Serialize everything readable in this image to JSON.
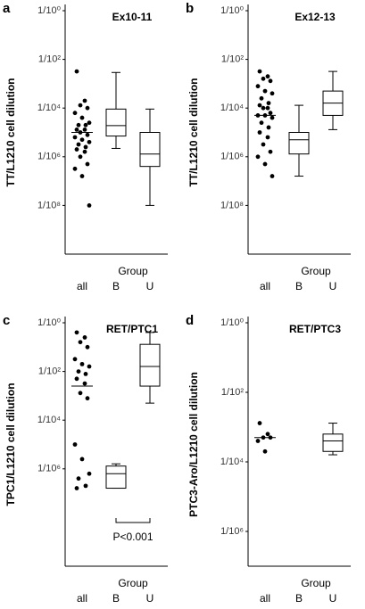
{
  "chart_data": [
    {
      "type": "box",
      "panel_label": "a",
      "title": "Ex10-11",
      "ylabel": "TT/L1210 cell dilution",
      "xlabel": "Group",
      "categories": [
        "all",
        "B",
        "U"
      ],
      "log_y": true,
      "ylim": [
        1e-10,
        1
      ],
      "yticks": [
        {
          "value": 1,
          "label": "1/10⁰"
        },
        {
          "value": 0.01,
          "label": "1/10²"
        },
        {
          "value": 0.0001,
          "label": "1/10⁴"
        },
        {
          "value": 1e-06,
          "label": "1/10⁶"
        },
        {
          "value": 1e-08,
          "label": "1/10⁸"
        }
      ],
      "points": {
        "values": [
          0.0032,
          0.0002,
          0.00013,
          0.0001,
          6.3e-05,
          4e-05,
          2.5e-05,
          2e-05,
          2e-05,
          1.3e-05,
          1.3e-05,
          1e-05,
          7.9e-06,
          6.3e-06,
          5e-06,
          4e-06,
          3.2e-06,
          2.5e-06,
          2e-06,
          1.6e-06,
          1e-06,
          5e-07,
          3.2e-07,
          1.6e-07,
          1e-08
        ],
        "median": 1e-05
      },
      "boxes": [
        {
          "whisker_high": 0.0029,
          "q3": 9.1e-05,
          "median": 1.9e-05,
          "q1": 7.1e-06,
          "whisker_low": 2.2e-06
        },
        {
          "whisker_high": 9.1e-05,
          "q3": 1e-05,
          "median": 1.3e-06,
          "q1": 4e-07,
          "whisker_low": 1e-08
        }
      ]
    },
    {
      "type": "box",
      "panel_label": "b",
      "title": "Ex12-13",
      "ylabel": "TT/L1210 cell dilution",
      "xlabel": "Group",
      "categories": [
        "all",
        "B",
        "U"
      ],
      "log_y": true,
      "ylim": [
        1e-10,
        1
      ],
      "yticks": [
        {
          "value": 1,
          "label": "1/10⁰"
        },
        {
          "value": 0.01,
          "label": "1/10²"
        },
        {
          "value": 0.0001,
          "label": "1/10⁴"
        },
        {
          "value": 1e-06,
          "label": "1/10⁶"
        },
        {
          "value": 1e-08,
          "label": "1/10⁸"
        }
      ],
      "points": {
        "values": [
          0.0032,
          0.002,
          0.0016,
          0.0013,
          0.00079,
          0.0005,
          0.0004,
          0.00025,
          0.00016,
          0.00013,
          0.0001,
          0.0001,
          6.3e-05,
          5e-05,
          5e-05,
          4e-05,
          2.5e-05,
          1.6e-05,
          1e-05,
          6.3e-06,
          3.2e-06,
          1.6e-06,
          1e-06,
          5e-07,
          1.6e-07
        ],
        "median": 5e-05
      },
      "boxes": [
        {
          "whisker_high": 0.00013,
          "q3": 1e-05,
          "median": 5e-06,
          "q1": 1.3e-06,
          "whisker_low": 1.6e-07
        },
        {
          "whisker_high": 0.0032,
          "q3": 0.0005,
          "median": 0.00016,
          "q1": 5e-05,
          "whisker_low": 1.3e-05
        }
      ]
    },
    {
      "type": "box",
      "panel_label": "c",
      "title": "RET/PTC1",
      "ylabel": "TPC1/L1210 cell dilution",
      "xlabel": "Group",
      "categories": [
        "all",
        "B",
        "U"
      ],
      "log_y": true,
      "ylim": [
        1e-10,
        1
      ],
      "yticks": [
        {
          "value": 1,
          "label": "1/10⁰"
        },
        {
          "value": 0.01,
          "label": "1/10²"
        },
        {
          "value": 0.0001,
          "label": "1/10⁴"
        },
        {
          "value": 1e-06,
          "label": "1/10⁶"
        }
      ],
      "points": {
        "values": [
          0.4,
          0.25,
          0.16,
          0.1,
          0.032,
          0.02,
          0.016,
          0.01,
          0.0079,
          0.005,
          0.0032,
          0.0013,
          0.00079,
          1e-05,
          2.5e-06,
          6.3e-07,
          4e-07,
          2e-07,
          1.6e-07
        ],
        "median": 0.0025
      },
      "boxes": [
        {
          "whisker_high": 1.6e-06,
          "q3": 1.3e-06,
          "median": 6.3e-07,
          "q1": 1.6e-07,
          "whisker_low": 1.6e-07
        },
        {
          "whisker_high": 0.4,
          "q3": 0.13,
          "median": 0.016,
          "q1": 0.0025,
          "whisker_low": 0.0005
        }
      ],
      "annotation": "P<0.001"
    },
    {
      "type": "box",
      "panel_label": "d",
      "title": "RET/PTC3",
      "ylabel": "PTC3-Aro/L1210 cell dilution",
      "xlabel": "Group",
      "categories": [
        "all",
        "B",
        "U"
      ],
      "log_y": true,
      "ylim": [
        1e-07,
        1
      ],
      "yticks": [
        {
          "value": 1,
          "label": "1/10⁰"
        },
        {
          "value": 0.01,
          "label": "1/10²"
        },
        {
          "value": 0.0001,
          "label": "1/10⁴"
        },
        {
          "value": 1e-06,
          "label": "1/10⁶"
        }
      ],
      "points": {
        "values": [
          0.0013,
          0.00063,
          0.0005,
          0.0005,
          0.0004,
          0.0002
        ],
        "median": 0.0005
      },
      "boxes": [
        null,
        {
          "whisker_high": 0.0013,
          "q3": 0.00063,
          "median": 0.0004,
          "q1": 0.0002,
          "whisker_low": 0.00016
        }
      ]
    }
  ]
}
